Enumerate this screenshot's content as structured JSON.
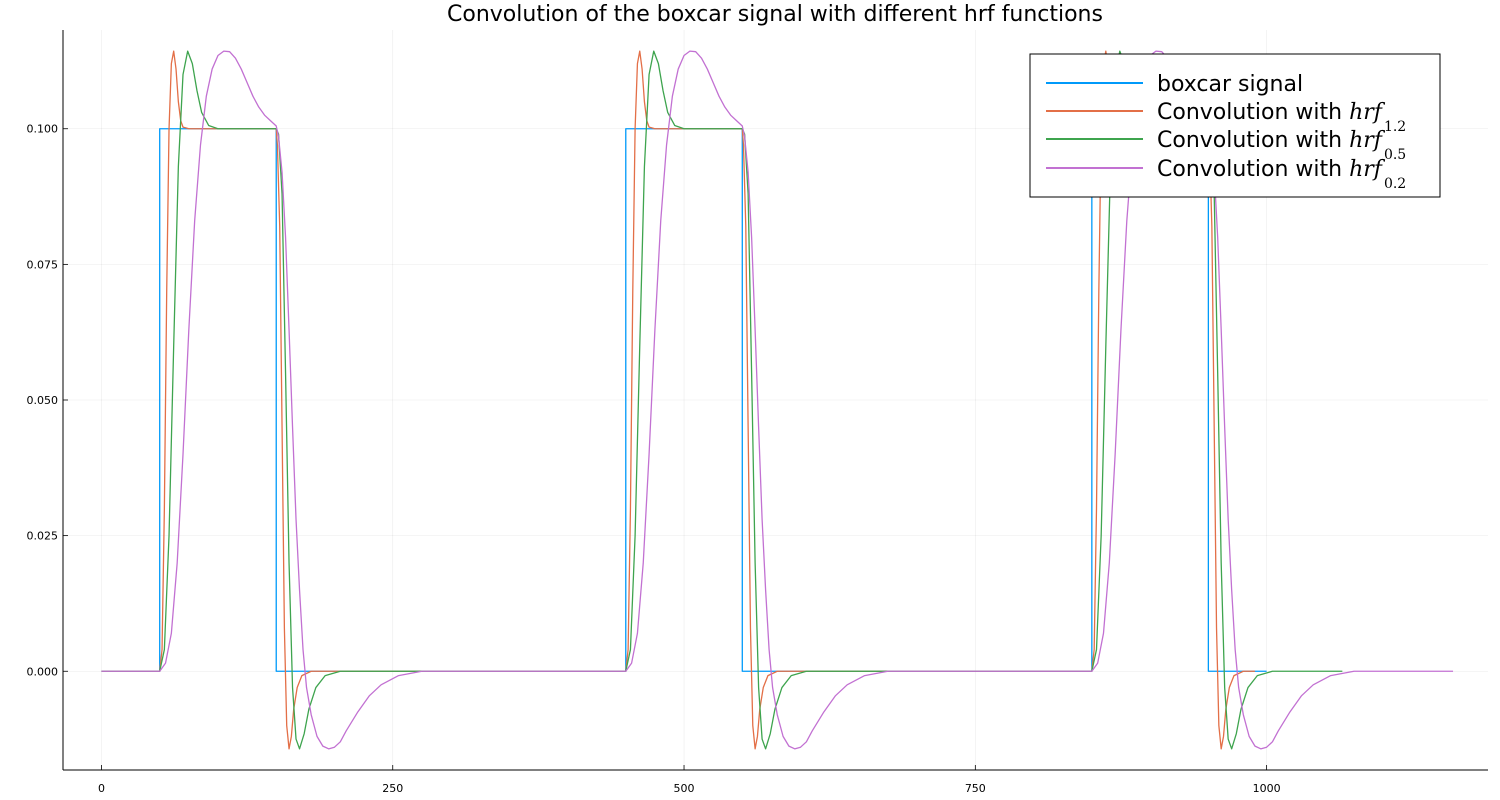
{
  "chart_data": {
    "type": "line",
    "title": "Convolution of the boxcar signal with different hrf functions",
    "xlabel": "",
    "ylabel": "",
    "xlim": [
      -33,
      1190
    ],
    "ylim": [
      -0.0182,
      0.1182
    ],
    "x_ticks": [
      0,
      250,
      500,
      750,
      1000
    ],
    "x_tick_labels": [
      "0",
      "250",
      "500",
      "750",
      "1000"
    ],
    "y_ticks": [
      0.0,
      0.025,
      0.05,
      0.075,
      0.1
    ],
    "y_tick_labels": [
      "0.000",
      "0.025",
      "0.050",
      "0.075",
      "0.100"
    ],
    "grid": true,
    "legend_position": "top-right",
    "series": [
      {
        "name": "boxcar signal",
        "label_prefix": "boxcar signal",
        "label_math": "",
        "label_sub": "",
        "color": "#009AFA",
        "points": [
          [
            0,
            0
          ],
          [
            50,
            0
          ],
          [
            50,
            0.1
          ],
          [
            150,
            0.1
          ],
          [
            150,
            0
          ],
          [
            450,
            0
          ],
          [
            450,
            0.1
          ],
          [
            550,
            0.1
          ],
          [
            550,
            0
          ],
          [
            850,
            0
          ],
          [
            850,
            0.1
          ],
          [
            950,
            0.1
          ],
          [
            950,
            0
          ],
          [
            1000,
            0
          ]
        ]
      },
      {
        "name": "Convolution with hrf_1.2",
        "label_prefix": "Convolution with ",
        "label_math": "hrf",
        "label_sub": "1.2",
        "color": "#E36F47",
        "points": [
          [
            0,
            0
          ],
          [
            50,
            0
          ],
          [
            52,
            0.004
          ],
          [
            54,
            0.03
          ],
          [
            56,
            0.07
          ],
          [
            58,
            0.1
          ],
          [
            60,
            0.112
          ],
          [
            62,
            0.1143
          ],
          [
            64,
            0.111
          ],
          [
            66,
            0.105
          ],
          [
            68,
            0.1015
          ],
          [
            70,
            0.1003
          ],
          [
            75,
            0.1
          ],
          [
            150,
            0.1
          ],
          [
            151,
            0.097
          ],
          [
            153,
            0.082
          ],
          [
            155,
            0.045
          ],
          [
            157,
            0.008
          ],
          [
            159,
            -0.01
          ],
          [
            161,
            -0.0143
          ],
          [
            163,
            -0.012
          ],
          [
            165,
            -0.007
          ],
          [
            168,
            -0.003
          ],
          [
            172,
            -0.0008
          ],
          [
            180,
            0
          ],
          [
            450,
            0
          ],
          [
            452,
            0.004
          ],
          [
            454,
            0.03
          ],
          [
            456,
            0.07
          ],
          [
            458,
            0.1
          ],
          [
            460,
            0.112
          ],
          [
            462,
            0.1143
          ],
          [
            464,
            0.111
          ],
          [
            466,
            0.105
          ],
          [
            468,
            0.1015
          ],
          [
            470,
            0.1003
          ],
          [
            475,
            0.1
          ],
          [
            550,
            0.1
          ],
          [
            551,
            0.097
          ],
          [
            553,
            0.082
          ],
          [
            555,
            0.045
          ],
          [
            557,
            0.008
          ],
          [
            559,
            -0.01
          ],
          [
            561,
            -0.0143
          ],
          [
            563,
            -0.012
          ],
          [
            565,
            -0.007
          ],
          [
            568,
            -0.003
          ],
          [
            572,
            -0.0008
          ],
          [
            580,
            0
          ],
          [
            850,
            0
          ],
          [
            852,
            0.004
          ],
          [
            854,
            0.03
          ],
          [
            856,
            0.07
          ],
          [
            858,
            0.1
          ],
          [
            860,
            0.112
          ],
          [
            862,
            0.1143
          ],
          [
            864,
            0.111
          ],
          [
            866,
            0.105
          ],
          [
            868,
            0.1015
          ],
          [
            870,
            0.1003
          ],
          [
            875,
            0.1
          ],
          [
            950,
            0.1
          ],
          [
            951,
            0.097
          ],
          [
            953,
            0.082
          ],
          [
            955,
            0.045
          ],
          [
            957,
            0.008
          ],
          [
            959,
            -0.01
          ],
          [
            961,
            -0.0143
          ],
          [
            963,
            -0.012
          ],
          [
            965,
            -0.007
          ],
          [
            968,
            -0.003
          ],
          [
            972,
            -0.0008
          ],
          [
            980,
            0
          ],
          [
            990,
            0
          ]
        ]
      },
      {
        "name": "Convolution with hrf_0.5",
        "label_prefix": "Convolution with ",
        "label_math": "hrf",
        "label_sub": "0.5",
        "color": "#3EA44E",
        "points": [
          [
            0,
            0
          ],
          [
            50,
            0
          ],
          [
            54,
            0.004
          ],
          [
            58,
            0.025
          ],
          [
            62,
            0.06
          ],
          [
            66,
            0.093
          ],
          [
            70,
            0.11
          ],
          [
            74,
            0.1143
          ],
          [
            78,
            0.112
          ],
          [
            82,
            0.107
          ],
          [
            86,
            0.103
          ],
          [
            92,
            0.1006
          ],
          [
            100,
            0.1
          ],
          [
            150,
            0.1
          ],
          [
            152,
            0.099
          ],
          [
            155,
            0.088
          ],
          [
            158,
            0.055
          ],
          [
            161,
            0.02
          ],
          [
            164,
            -0.003
          ],
          [
            167,
            -0.0125
          ],
          [
            170,
            -0.0143
          ],
          [
            174,
            -0.0115
          ],
          [
            178,
            -0.007
          ],
          [
            184,
            -0.003
          ],
          [
            192,
            -0.0008
          ],
          [
            205,
            0
          ],
          [
            450,
            0
          ],
          [
            454,
            0.004
          ],
          [
            458,
            0.025
          ],
          [
            462,
            0.06
          ],
          [
            466,
            0.093
          ],
          [
            470,
            0.11
          ],
          [
            474,
            0.1143
          ],
          [
            478,
            0.112
          ],
          [
            482,
            0.107
          ],
          [
            486,
            0.103
          ],
          [
            492,
            0.1006
          ],
          [
            500,
            0.1
          ],
          [
            550,
            0.1
          ],
          [
            552,
            0.099
          ],
          [
            555,
            0.088
          ],
          [
            558,
            0.055
          ],
          [
            561,
            0.02
          ],
          [
            564,
            -0.003
          ],
          [
            567,
            -0.0125
          ],
          [
            570,
            -0.0143
          ],
          [
            574,
            -0.0115
          ],
          [
            578,
            -0.007
          ],
          [
            584,
            -0.003
          ],
          [
            592,
            -0.0008
          ],
          [
            605,
            0
          ],
          [
            850,
            0
          ],
          [
            854,
            0.004
          ],
          [
            858,
            0.025
          ],
          [
            862,
            0.06
          ],
          [
            866,
            0.093
          ],
          [
            870,
            0.11
          ],
          [
            874,
            0.1143
          ],
          [
            878,
            0.112
          ],
          [
            882,
            0.107
          ],
          [
            886,
            0.103
          ],
          [
            892,
            0.1006
          ],
          [
            900,
            0.1
          ],
          [
            950,
            0.1
          ],
          [
            952,
            0.099
          ],
          [
            955,
            0.088
          ],
          [
            958,
            0.055
          ],
          [
            961,
            0.02
          ],
          [
            964,
            -0.003
          ],
          [
            967,
            -0.0125
          ],
          [
            970,
            -0.0143
          ],
          [
            974,
            -0.0115
          ],
          [
            978,
            -0.007
          ],
          [
            984,
            -0.003
          ],
          [
            992,
            -0.0008
          ],
          [
            1005,
            0
          ],
          [
            1065,
            0
          ]
        ]
      },
      {
        "name": "Convolution with hrf_0.2",
        "label_prefix": "Convolution with ",
        "label_math": "hrf",
        "label_sub": "0.2",
        "color": "#C271D2",
        "points": [
          [
            0,
            0
          ],
          [
            50,
            0
          ],
          [
            55,
            0.0015
          ],
          [
            60,
            0.007
          ],
          [
            65,
            0.02
          ],
          [
            70,
            0.04
          ],
          [
            75,
            0.063
          ],
          [
            80,
            0.083
          ],
          [
            85,
            0.097
          ],
          [
            90,
            0.106
          ],
          [
            95,
            0.111
          ],
          [
            100,
            0.1135
          ],
          [
            105,
            0.1143
          ],
          [
            110,
            0.1142
          ],
          [
            115,
            0.113
          ],
          [
            120,
            0.111
          ],
          [
            125,
            0.1085
          ],
          [
            130,
            0.106
          ],
          [
            135,
            0.104
          ],
          [
            140,
            0.1025
          ],
          [
            145,
            0.1015
          ],
          [
            150,
            0.1005
          ],
          [
            152,
            0.0985
          ],
          [
            155,
            0.092
          ],
          [
            158,
            0.08
          ],
          [
            161,
            0.063
          ],
          [
            164,
            0.045
          ],
          [
            167,
            0.028
          ],
          [
            170,
            0.015
          ],
          [
            173,
            0.004
          ],
          [
            176,
            -0.003
          ],
          [
            180,
            -0.008
          ],
          [
            185,
            -0.012
          ],
          [
            190,
            -0.0138
          ],
          [
            195,
            -0.0143
          ],
          [
            200,
            -0.014
          ],
          [
            205,
            -0.013
          ],
          [
            210,
            -0.011
          ],
          [
            220,
            -0.0075
          ],
          [
            230,
            -0.0045
          ],
          [
            240,
            -0.0025
          ],
          [
            255,
            -0.0008
          ],
          [
            275,
            0
          ],
          [
            450,
            0
          ],
          [
            455,
            0.0015
          ],
          [
            460,
            0.007
          ],
          [
            465,
            0.02
          ],
          [
            470,
            0.04
          ],
          [
            475,
            0.063
          ],
          [
            480,
            0.083
          ],
          [
            485,
            0.097
          ],
          [
            490,
            0.106
          ],
          [
            495,
            0.111
          ],
          [
            500,
            0.1135
          ],
          [
            505,
            0.1143
          ],
          [
            510,
            0.1142
          ],
          [
            515,
            0.113
          ],
          [
            520,
            0.111
          ],
          [
            525,
            0.1085
          ],
          [
            530,
            0.106
          ],
          [
            535,
            0.104
          ],
          [
            540,
            0.1025
          ],
          [
            545,
            0.1015
          ],
          [
            550,
            0.1005
          ],
          [
            552,
            0.0985
          ],
          [
            555,
            0.092
          ],
          [
            558,
            0.08
          ],
          [
            561,
            0.063
          ],
          [
            564,
            0.045
          ],
          [
            567,
            0.028
          ],
          [
            570,
            0.015
          ],
          [
            573,
            0.004
          ],
          [
            576,
            -0.003
          ],
          [
            580,
            -0.008
          ],
          [
            585,
            -0.012
          ],
          [
            590,
            -0.0138
          ],
          [
            595,
            -0.0143
          ],
          [
            600,
            -0.014
          ],
          [
            605,
            -0.013
          ],
          [
            610,
            -0.011
          ],
          [
            620,
            -0.0075
          ],
          [
            630,
            -0.0045
          ],
          [
            640,
            -0.0025
          ],
          [
            655,
            -0.0008
          ],
          [
            675,
            0
          ],
          [
            850,
            0
          ],
          [
            855,
            0.0015
          ],
          [
            860,
            0.007
          ],
          [
            865,
            0.02
          ],
          [
            870,
            0.04
          ],
          [
            875,
            0.063
          ],
          [
            880,
            0.083
          ],
          [
            885,
            0.097
          ],
          [
            890,
            0.106
          ],
          [
            895,
            0.111
          ],
          [
            900,
            0.1135
          ],
          [
            905,
            0.1143
          ],
          [
            910,
            0.1142
          ],
          [
            915,
            0.113
          ],
          [
            920,
            0.111
          ],
          [
            925,
            0.1085
          ],
          [
            930,
            0.106
          ],
          [
            935,
            0.104
          ],
          [
            940,
            0.1025
          ],
          [
            945,
            0.1015
          ],
          [
            950,
            0.1005
          ],
          [
            952,
            0.0985
          ],
          [
            955,
            0.092
          ],
          [
            958,
            0.08
          ],
          [
            961,
            0.063
          ],
          [
            964,
            0.045
          ],
          [
            967,
            0.028
          ],
          [
            970,
            0.015
          ],
          [
            973,
            0.004
          ],
          [
            976,
            -0.003
          ],
          [
            980,
            -0.008
          ],
          [
            985,
            -0.012
          ],
          [
            990,
            -0.0138
          ],
          [
            995,
            -0.0143
          ],
          [
            1000,
            -0.014
          ],
          [
            1005,
            -0.013
          ],
          [
            1010,
            -0.011
          ],
          [
            1020,
            -0.0075
          ],
          [
            1030,
            -0.0045
          ],
          [
            1040,
            -0.0025
          ],
          [
            1055,
            -0.0008
          ],
          [
            1075,
            0
          ],
          [
            1160,
            0
          ]
        ]
      }
    ]
  }
}
